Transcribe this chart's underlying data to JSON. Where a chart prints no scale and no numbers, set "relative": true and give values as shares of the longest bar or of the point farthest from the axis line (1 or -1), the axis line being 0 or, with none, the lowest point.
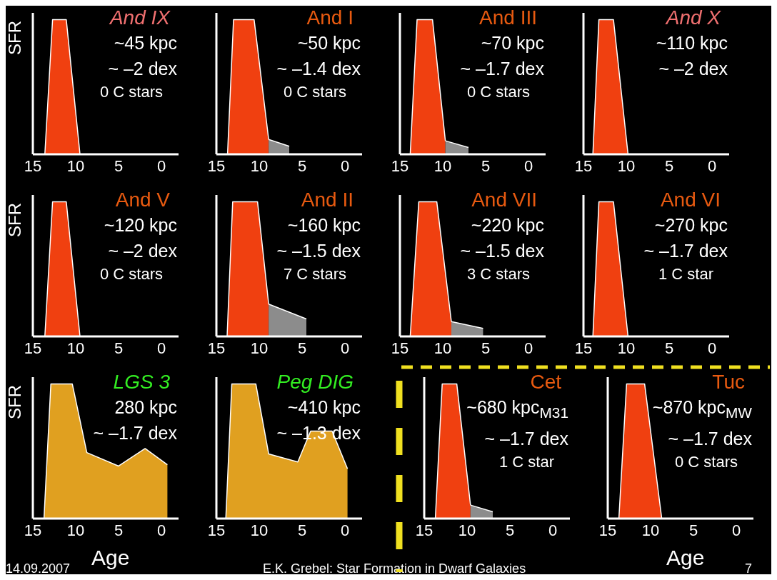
{
  "chart_data": [
    {
      "type": "area",
      "title": "And IX",
      "ylabel": "SFR",
      "annotations": [
        "~45 kpc",
        "~ –2 dex",
        "0 C stars"
      ],
      "relative": true,
      "xlim": [
        15,
        -2
      ],
      "xticks": [
        15,
        10,
        5,
        0
      ],
      "tick_labels": "x",
      "series": [
        {
          "color": "#f04010",
          "x": [
            13.6,
            12.7,
            11.1,
            9.5
          ],
          "values": [
            0,
            1,
            1,
            0
          ]
        }
      ]
    },
    {
      "type": "area",
      "title": "And I",
      "annotations": [
        "~50 kpc",
        "~ –1.4 dex",
        "0 C stars"
      ],
      "relative": true,
      "xlim": [
        15,
        -2
      ],
      "xticks": [
        15,
        10,
        5,
        0
      ],
      "tick_labels": "x",
      "series": [
        {
          "color": "#f04010",
          "x": [
            13.7,
            13.0,
            10.6,
            8.9
          ],
          "values": [
            0,
            1,
            1,
            0.11
          ]
        },
        {
          "color": "#8c8c8c",
          "x": [
            8.9,
            6.5
          ],
          "values": [
            0.11,
            0.06
          ]
        }
      ]
    },
    {
      "type": "area",
      "title": "And III",
      "annotations": [
        "~70 kpc",
        "~ –1.7 dex",
        "0 C stars"
      ],
      "relative": true,
      "xlim": [
        15,
        -2
      ],
      "xticks": [
        15,
        10,
        5,
        0
      ],
      "tick_labels": "x",
      "series": [
        {
          "color": "#f04010",
          "x": [
            13.8,
            13.0,
            11.2,
            9.7
          ],
          "values": [
            0,
            1,
            1,
            0.1
          ]
        },
        {
          "color": "#8c8c8c",
          "x": [
            9.7,
            7.0
          ],
          "values": [
            0.1,
            0.05
          ]
        }
      ]
    },
    {
      "type": "area",
      "title": "And X",
      "annotations": [
        "~110 kpc",
        "~ –2 dex"
      ],
      "relative": true,
      "xlim": [
        15,
        -2
      ],
      "xticks": [
        15,
        10,
        5,
        0
      ],
      "tick_labels": "x",
      "series": [
        {
          "color": "#f04010",
          "x": [
            13.9,
            13.2,
            11.5,
            9.8
          ],
          "values": [
            0,
            1,
            1,
            0
          ]
        }
      ]
    },
    {
      "type": "area",
      "title": "And V",
      "ylabel": "SFR",
      "annotations": [
        "~120 kpc",
        "~ –2 dex",
        "0 C stars"
      ],
      "relative": true,
      "xlim": [
        15,
        -2
      ],
      "xticks": [
        15,
        10,
        5,
        0
      ],
      "tick_labels": "x",
      "series": [
        {
          "color": "#f04010",
          "x": [
            13.6,
            12.7,
            11.1,
            9.5
          ],
          "values": [
            0,
            1,
            1,
            0
          ]
        }
      ]
    },
    {
      "type": "area",
      "title": "And II",
      "annotations": [
        "~160 kpc",
        "~ –1.5 dex",
        "7 C stars"
      ],
      "relative": true,
      "xlim": [
        15,
        -2
      ],
      "xticks": [
        15,
        10,
        5,
        0
      ],
      "tick_labels": "x",
      "series": [
        {
          "color": "#f04010",
          "x": [
            13.75,
            13.1,
            10.2,
            8.9
          ],
          "values": [
            0,
            1,
            1,
            0.24
          ]
        },
        {
          "color": "#8c8c8c",
          "x": [
            8.9,
            4.5
          ],
          "values": [
            0.24,
            0.13
          ]
        }
      ]
    },
    {
      "type": "area",
      "title": "And VII",
      "annotations": [
        "~220 kpc",
        "~ –1.5 dex",
        "3 C stars"
      ],
      "relative": true,
      "xlim": [
        15,
        -2
      ],
      "xticks": [
        15,
        10,
        5,
        0
      ],
      "tick_labels": "x",
      "series": [
        {
          "color": "#f04010",
          "x": [
            13.8,
            12.8,
            10.7,
            9.0
          ],
          "values": [
            0,
            1,
            1,
            0.11
          ]
        },
        {
          "color": "#8c8c8c",
          "x": [
            9.0,
            5.3
          ],
          "values": [
            0.11,
            0.06
          ]
        }
      ]
    },
    {
      "type": "area",
      "title": "And VI",
      "annotations": [
        "~270 kpc",
        "~ –1.7 dex",
        "1 C star"
      ],
      "relative": true,
      "xlim": [
        15,
        -2
      ],
      "xticks": [
        15,
        10,
        5,
        0
      ],
      "tick_labels": "x",
      "series": [
        {
          "color": "#f04010",
          "x": [
            13.9,
            13.2,
            11.5,
            9.8
          ],
          "values": [
            0,
            1,
            1,
            0
          ]
        }
      ]
    },
    {
      "type": "area",
      "title": "LGS 3",
      "ylabel": "SFR",
      "xlabel": "Age",
      "annotations": [
        "280 kpc",
        "~ –1.7 dex"
      ],
      "relative": true,
      "xlim": [
        15,
        -2
      ],
      "xticks": [
        15,
        10,
        5,
        0
      ],
      "tick_labels": "x",
      "series": [
        {
          "color": "#e0a020",
          "x": [
            13.7,
            12.9,
            10.4,
            8.7,
            5.0,
            1.9,
            -0.7
          ],
          "values": [
            0,
            1,
            1,
            0.49,
            0.39,
            0.52,
            0.4
          ]
        }
      ]
    },
    {
      "type": "area",
      "title": "Peg DIG",
      "annotations": [
        "~410 kpc",
        "~ –1.3 dex"
      ],
      "relative": true,
      "xlim": [
        15,
        -2
      ],
      "xticks": [
        15,
        10,
        5,
        0
      ],
      "tick_labels": "x",
      "series": [
        {
          "color": "#e0a020",
          "x": [
            13.9,
            13.2,
            10.4,
            8.9,
            5.5,
            4.0,
            1.5,
            -0.3
          ],
          "values": [
            0,
            1,
            1,
            0.48,
            0.42,
            0.65,
            0.65,
            0.37
          ]
        }
      ]
    },
    {
      "type": "area",
      "title": "Cet",
      "annotations": [
        "~680 kpc$_{M31}$",
        "~ –1.7 dex",
        "1 C star"
      ],
      "relative": true,
      "xlim": [
        15,
        -2
      ],
      "xticks": [
        15,
        10,
        5,
        0
      ],
      "tick_labels": "x",
      "series": [
        {
          "color": "#f04010",
          "x": [
            13.7,
            12.9,
            11.2,
            9.6
          ],
          "values": [
            0,
            1,
            1,
            0.1
          ]
        },
        {
          "color": "#8c8c8c",
          "x": [
            9.6,
            7.0
          ],
          "values": [
            0.1,
            0.05
          ]
        }
      ]
    },
    {
      "type": "area",
      "title": "Tuc",
      "xlabel": "Age",
      "annotations": [
        "~870 kpc$_{MW}$",
        "~ –1.7 dex",
        "0 C stars"
      ],
      "relative": true,
      "xlim": [
        15,
        -2
      ],
      "xticks": [
        15,
        10,
        5,
        0
      ],
      "tick_labels": "x",
      "series": [
        {
          "color": "#f04010",
          "x": [
            13.7,
            12.8,
            10.7,
            8.7
          ],
          "values": [
            0,
            1,
            1,
            0
          ]
        }
      ]
    },
    {
      "type": "other",
      "annotations": [
        "14.09.2007",
        "E.K. Grebel: Star Formation in Dwarf Galaxies",
        "7"
      ]
    }
  ]
}
